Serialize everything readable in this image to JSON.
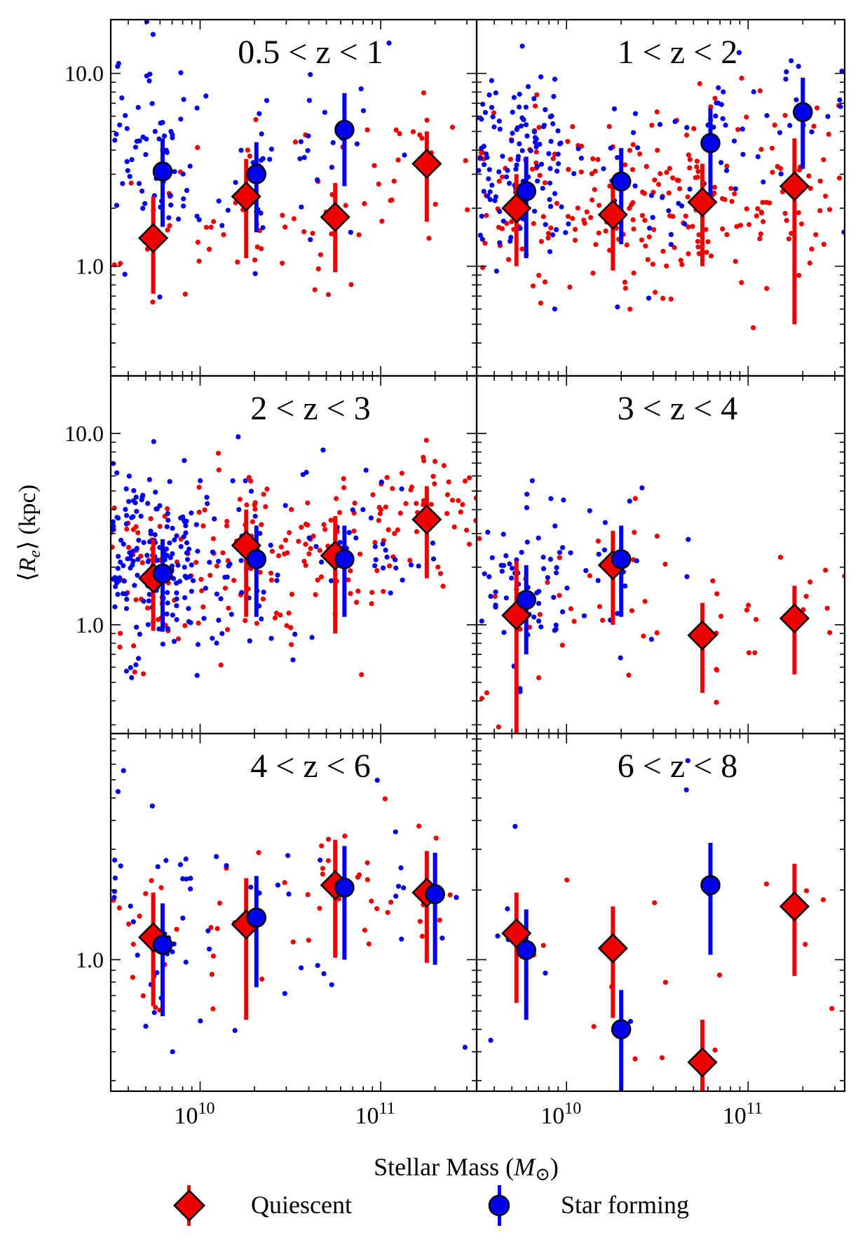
{
  "figure": {
    "ylabel": "⟨Rₑ⟩ (kpc)",
    "xlabel": "Stellar Mass (M⊙)",
    "xlabel_main": "Stellar Mass (",
    "xlabel_sym": "M",
    "xlabel_sub": "⊙",
    "xlabel_close": ")",
    "ylabel_R": "R",
    "ylabel_sub": "e",
    "ylabel_units": "(kpc)",
    "colors": {
      "quiescent": "#ee0000",
      "star_forming": "#0000ee",
      "frame": "#000000"
    }
  },
  "legend": {
    "placement": "bottom-center",
    "quiescent": "Quiescent",
    "star_forming": "Star forming"
  },
  "x_tick_labels": {
    "1e10": "10",
    "1e10_exp": "10",
    "1e11": "10",
    "1e11_exp": "11"
  },
  "y_tick_labels": {
    "10": "10.0",
    "1": "1.0"
  },
  "chart_data": {
    "type": "scatter",
    "xscale": "log",
    "yscale": "log",
    "xlim": [
      3200000000.0,
      340000000000.0
    ],
    "xlabel": "Stellar Mass (M⊙)",
    "ylabel": "⟨Rₑ⟩ (kpc)",
    "series_names": [
      "Quiescent",
      "Star forming"
    ],
    "panels": [
      {
        "title": "0.5 < z < 1",
        "ylim": [
          0.27,
          19
        ],
        "yticks": [
          10,
          1
        ],
        "quiescent_medians": [
          {
            "mass": 5500000000.0,
            "re": 1.4,
            "lo": 0.72,
            "hi": 2.3
          },
          {
            "mass": 18000000000.0,
            "re": 2.3,
            "lo": 1.1,
            "hi": 3.6
          },
          {
            "mass": 56000000000.0,
            "re": 1.8,
            "lo": 0.93,
            "hi": 2.7
          },
          {
            "mass": 180000000000.0,
            "re": 3.4,
            "lo": 1.7,
            "hi": 5.0
          }
        ],
        "starforming_medians": [
          {
            "mass": 6200000000.0,
            "re": 3.1,
            "lo": 1.6,
            "hi": 4.6
          },
          {
            "mass": 20500000000.0,
            "re": 3.0,
            "lo": 1.5,
            "hi": 4.4
          },
          {
            "mass": 63000000000.0,
            "re": 5.1,
            "lo": 2.6,
            "hi": 7.9
          }
        ]
      },
      {
        "title": "1 < z < 2",
        "ylim": [
          0.27,
          19
        ],
        "yticks": [],
        "quiescent_medians": [
          {
            "mass": 5300000000.0,
            "re": 2.0,
            "lo": 1.0,
            "hi": 3.0
          },
          {
            "mass": 18000000000.0,
            "re": 1.85,
            "lo": 0.95,
            "hi": 2.8
          },
          {
            "mass": 56000000000.0,
            "re": 2.15,
            "lo": 1.0,
            "hi": 3.4
          },
          {
            "mass": 180000000000.0,
            "re": 2.6,
            "lo": 0.5,
            "hi": 4.6
          }
        ],
        "starforming_medians": [
          {
            "mass": 6000000000.0,
            "re": 2.45,
            "lo": 1.1,
            "hi": 3.7
          },
          {
            "mass": 20000000000.0,
            "re": 2.75,
            "lo": 1.3,
            "hi": 4.1
          },
          {
            "mass": 62000000000.0,
            "re": 4.35,
            "lo": 2.1,
            "hi": 6.6
          },
          {
            "mass": 200000000000.0,
            "re": 6.3,
            "lo": 3.2,
            "hi": 9.5
          }
        ]
      },
      {
        "title": "2 < z < 3",
        "ylim": [
          0.27,
          20
        ],
        "yticks": [
          10,
          1
        ],
        "quiescent_medians": [
          {
            "mass": 5500000000.0,
            "re": 1.75,
            "lo": 0.93,
            "hi": 2.8
          },
          {
            "mass": 18000000000.0,
            "re": 2.6,
            "lo": 1.1,
            "hi": 4.0
          },
          {
            "mass": 56000000000.0,
            "re": 2.3,
            "lo": 0.9,
            "hi": 3.7
          },
          {
            "mass": 180000000000.0,
            "re": 3.55,
            "lo": 1.75,
            "hi": 5.3
          }
        ],
        "starforming_medians": [
          {
            "mass": 6200000000.0,
            "re": 1.85,
            "lo": 0.92,
            "hi": 2.8
          },
          {
            "mass": 20500000000.0,
            "re": 2.2,
            "lo": 1.1,
            "hi": 3.3
          },
          {
            "mass": 63000000000.0,
            "re": 2.2,
            "lo": 1.1,
            "hi": 3.3
          }
        ]
      },
      {
        "title": "3 < z < 4",
        "ylim": [
          0.27,
          20
        ],
        "yticks": [],
        "quiescent_medians": [
          {
            "mass": 5300000000.0,
            "re": 1.12,
            "lo": 0.27,
            "hi": 2.15
          },
          {
            "mass": 18000000000.0,
            "re": 2.05,
            "lo": 1.0,
            "hi": 3.1
          },
          {
            "mass": 56000000000.0,
            "re": 0.88,
            "lo": 0.44,
            "hi": 1.3
          },
          {
            "mass": 180000000000.0,
            "re": 1.08,
            "lo": 0.55,
            "hi": 1.6
          }
        ],
        "starforming_medians": [
          {
            "mass": 6000000000.0,
            "re": 1.35,
            "lo": 0.7,
            "hi": 2.05
          },
          {
            "mass": 20000000000.0,
            "re": 2.2,
            "lo": 1.1,
            "hi": 3.3
          }
        ]
      },
      {
        "title": "4 < z < 6",
        "ylim": [
          0.27,
          9.5
        ],
        "yticks": [
          1
        ],
        "quiescent_medians": [
          {
            "mass": 5500000000.0,
            "re": 1.25,
            "lo": 0.63,
            "hi": 1.95
          },
          {
            "mass": 18000000000.0,
            "re": 1.42,
            "lo": 0.55,
            "hi": 2.25
          },
          {
            "mass": 56000000000.0,
            "re": 2.1,
            "lo": 1.02,
            "hi": 3.3
          },
          {
            "mass": 180000000000.0,
            "re": 1.95,
            "lo": 0.97,
            "hi": 2.95
          }
        ],
        "starforming_medians": [
          {
            "mass": 6200000000.0,
            "re": 1.16,
            "lo": 0.57,
            "hi": 1.75
          },
          {
            "mass": 20500000000.0,
            "re": 1.52,
            "lo": 0.76,
            "hi": 2.3
          },
          {
            "mass": 63000000000.0,
            "re": 2.05,
            "lo": 1.0,
            "hi": 3.1
          },
          {
            "mass": 200000000000.0,
            "re": 1.92,
            "lo": 0.95,
            "hi": 2.9
          }
        ]
      },
      {
        "title": "6 < z < 8",
        "ylim": [
          0.27,
          9.5
        ],
        "yticks": [],
        "quiescent_medians": [
          {
            "mass": 5300000000.0,
            "re": 1.3,
            "lo": 0.65,
            "hi": 1.95
          },
          {
            "mass": 18000000000.0,
            "re": 1.12,
            "lo": 0.56,
            "hi": 1.7
          },
          {
            "mass": 56000000000.0,
            "re": 0.36,
            "lo": 0.27,
            "hi": 0.55
          },
          {
            "mass": 180000000000.0,
            "re": 1.7,
            "lo": 0.85,
            "hi": 2.6
          }
        ],
        "starforming_medians": [
          {
            "mass": 6000000000.0,
            "re": 1.1,
            "lo": 0.55,
            "hi": 1.65
          },
          {
            "mass": 20000000000.0,
            "re": 0.5,
            "lo": 0.27,
            "hi": 0.74
          },
          {
            "mass": 62000000000.0,
            "re": 2.1,
            "lo": 1.05,
            "hi": 3.2
          }
        ]
      }
    ],
    "individual_galaxies": {
      "description": "small dots: individual galaxies, red = quiescent, blue = star forming",
      "counts_approx": [
        {
          "panel": "0.5 < z < 1",
          "quiescent": 85,
          "star_forming": 110
        },
        {
          "panel": "1 < z < 2",
          "quiescent": 260,
          "star_forming": 200
        },
        {
          "panel": "2 < z < 3",
          "quiescent": 230,
          "star_forming": 260
        },
        {
          "panel": "3 < z < 4",
          "quiescent": 55,
          "star_forming": 85
        },
        {
          "panel": "4 < z < 6",
          "quiescent": 60,
          "star_forming": 65
        },
        {
          "panel": "6 < z < 8",
          "quiescent": 18,
          "star_forming": 12
        }
      ]
    }
  }
}
